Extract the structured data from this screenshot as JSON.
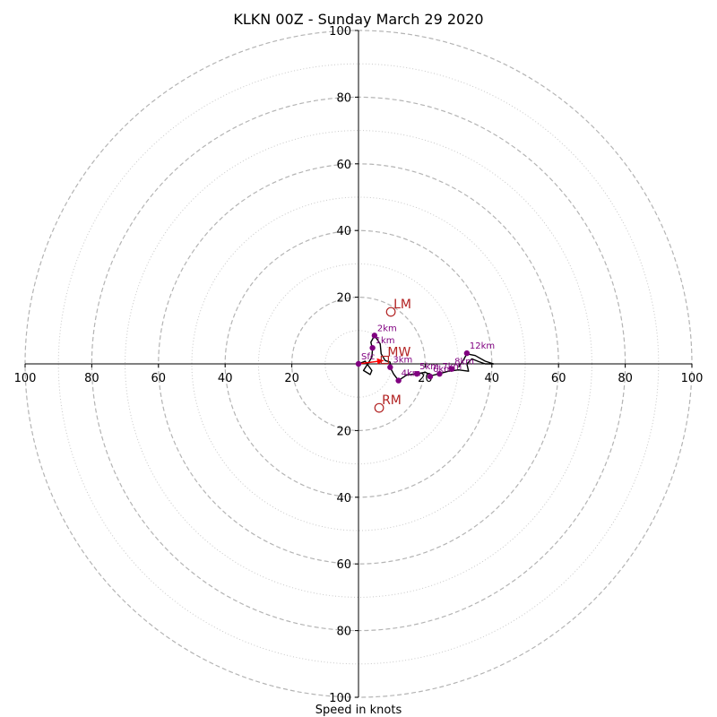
{
  "chart_data": {
    "type": "hodograph",
    "title": "KLKN 00Z - Sunday March 29 2020",
    "xlabel": "Speed in knots",
    "ring_max": 100,
    "major_rings": [
      20,
      40,
      60,
      80,
      100
    ],
    "minor_rings": [
      10,
      30,
      50,
      70,
      90
    ],
    "x_tick_labels": [
      {
        "label": "100",
        "value": -100
      },
      {
        "label": "80",
        "value": -80
      },
      {
        "label": "60",
        "value": -60
      },
      {
        "label": "40",
        "value": -40
      },
      {
        "label": "20",
        "value": -20
      },
      {
        "label": "20",
        "value": 20
      },
      {
        "label": "40",
        "value": 40
      },
      {
        "label": "60",
        "value": 60
      },
      {
        "label": "80",
        "value": 80
      },
      {
        "label": "100",
        "value": 100
      }
    ],
    "y_tick_labels": [
      {
        "label": "100",
        "value": 100
      },
      {
        "label": "80",
        "value": 80
      },
      {
        "label": "60",
        "value": 60
      },
      {
        "label": "40",
        "value": 40
      },
      {
        "label": "20",
        "value": 20
      },
      {
        "label": "20",
        "value": -20
      },
      {
        "label": "40",
        "value": -40
      },
      {
        "label": "60",
        "value": -60
      },
      {
        "label": "80",
        "value": -80
      },
      {
        "label": "100",
        "value": -100
      }
    ],
    "hodograph_trace": {
      "color": "#000000",
      "points": [
        [
          0,
          0
        ],
        [
          2,
          0.8
        ],
        [
          4,
          -2
        ],
        [
          3.5,
          -3.2
        ],
        [
          1.5,
          -2
        ],
        [
          4,
          2
        ],
        [
          4.2,
          4.5
        ],
        [
          3.7,
          6.5
        ],
        [
          4.8,
          8.5
        ],
        [
          6.5,
          6
        ],
        [
          6.8,
          3
        ],
        [
          8,
          1
        ],
        [
          9.5,
          0.5
        ],
        [
          9.5,
          -1
        ],
        [
          10.5,
          -3
        ],
        [
          12,
          -5
        ],
        [
          14.5,
          -3.3
        ],
        [
          17.5,
          -3
        ],
        [
          20,
          -2.5
        ],
        [
          22,
          -3.5
        ],
        [
          24,
          -3
        ],
        [
          27,
          -2.2
        ],
        [
          30,
          -1.8
        ],
        [
          33,
          -2.2
        ],
        [
          32.5,
          0
        ],
        [
          34,
          1.5
        ],
        [
          36,
          0.7
        ],
        [
          38,
          0
        ],
        [
          40.5,
          0
        ],
        [
          38,
          0.8
        ],
        [
          35,
          2.5
        ],
        [
          32.5,
          3
        ],
        [
          31.5,
          1.2
        ],
        [
          30,
          -1
        ]
      ]
    },
    "height_markers": {
      "color": "#800080",
      "points": [
        {
          "label": "Sfc",
          "u": 0,
          "v": 0
        },
        {
          "label": "1km",
          "u": 4.2,
          "v": 4.8
        },
        {
          "label": "2km",
          "u": 4.8,
          "v": 8.5
        },
        {
          "label": "3km",
          "u": 9.5,
          "v": -1
        },
        {
          "label": "4km",
          "u": 12,
          "v": -5
        },
        {
          "label": "5km",
          "u": 17.5,
          "v": -3
        },
        {
          "label": "6km",
          "u": 21.5,
          "v": -3.8
        },
        {
          "label": "7km",
          "u": 24.3,
          "v": -3
        },
        {
          "label": "8km",
          "u": 28,
          "v": -1.5
        },
        {
          "label": "12km",
          "u": 32.5,
          "v": 3.2
        }
      ]
    },
    "storm_motions": {
      "color": "#b22222",
      "points": [
        {
          "label": "LM",
          "u": 9.7,
          "v": 15.6
        },
        {
          "label": "RM",
          "u": 6.2,
          "v": -13.2
        },
        {
          "label": "MW",
          "u": 7.9,
          "v": 1.2
        }
      ]
    },
    "shear_arrow": {
      "color": "#ff0000",
      "from": [
        0,
        0
      ],
      "to": [
        7.5,
        1
      ]
    }
  }
}
